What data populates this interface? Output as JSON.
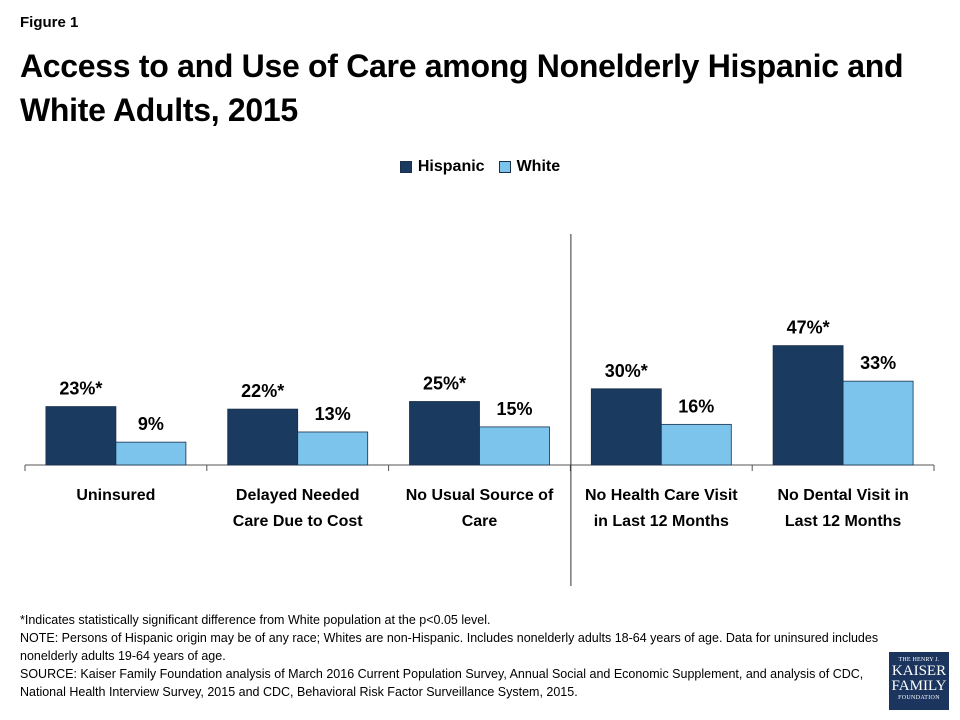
{
  "figure_label": "Figure 1",
  "title": "Access to and Use of Care among Nonelderly Hispanic and White Adults, 2015",
  "colors": {
    "hispanic": "#1a3a5f",
    "white": "#7dc4ec",
    "axis": "#555555"
  },
  "chart_data": {
    "type": "bar",
    "title": "Access to and Use of Care among Nonelderly Hispanic and White Adults, 2015",
    "categories": [
      [
        "Uninsured"
      ],
      [
        "Delayed Needed",
        "Care Due to Cost"
      ],
      [
        "No Usual Source of",
        "Care"
      ],
      [
        "No Health Care Visit",
        "in Last 12 Months"
      ],
      [
        "No Dental Visit in",
        "Last 12 Months"
      ]
    ],
    "series": [
      {
        "name": "Hispanic",
        "values": [
          23,
          22,
          25,
          30,
          47
        ],
        "labels": [
          "23%*",
          "22%*",
          "25%*",
          "30%*",
          "47%*"
        ]
      },
      {
        "name": "White",
        "values": [
          9,
          13,
          15,
          16,
          33
        ],
        "labels": [
          "9%",
          "13%",
          "15%",
          "16%",
          "33%"
        ]
      }
    ],
    "ylim": [
      0,
      90
    ],
    "grid": false,
    "legend_position": "top-center",
    "divider_after_category": 2
  },
  "legend": [
    {
      "label": "Hispanic",
      "color": "#1a3a5f"
    },
    {
      "label": "White",
      "color": "#7dc4ec"
    }
  ],
  "footnotes": [
    "*Indicates statistically significant difference from White population at the p<0.05 level.",
    "NOTE: Persons of Hispanic origin may be of any race; Whites are non-Hispanic. Includes nonelderly adults 18-64 years of age. Data for uninsured includes nonelderly adults 19-64 years of age.",
    "SOURCE: Kaiser Family Foundation analysis of March 2016 Current Population Survey, Annual Social and Economic Supplement, and analysis of CDC, National Health Interview Survey, 2015 and CDC, Behavioral Risk Factor Surveillance System, 2015."
  ],
  "logo": {
    "line1": "THE HENRY J.",
    "line2": "KAISER",
    "line3": "FAMILY",
    "line4": "FOUNDATION"
  }
}
